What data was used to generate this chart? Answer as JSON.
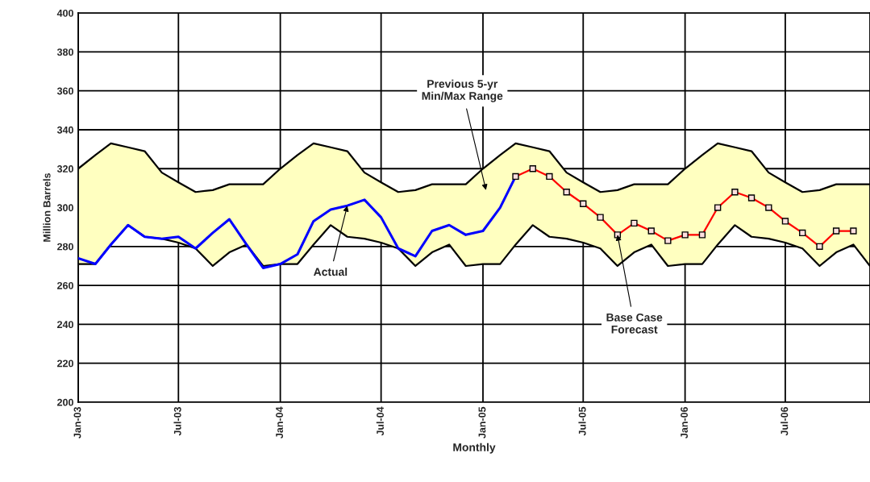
{
  "chart_data": {
    "type": "line",
    "xlabel": "Monthly",
    "ylabel": "Million Barrels",
    "x": [
      "2003-01",
      "2003-02",
      "2003-03",
      "2003-04",
      "2003-05",
      "2003-06",
      "2003-07",
      "2003-08",
      "2003-09",
      "2003-10",
      "2003-11",
      "2003-12",
      "2004-01",
      "2004-02",
      "2004-03",
      "2004-04",
      "2004-05",
      "2004-06",
      "2004-07",
      "2004-08",
      "2004-09",
      "2004-10",
      "2004-11",
      "2004-12",
      "2005-01",
      "2005-02",
      "2005-03",
      "2005-04",
      "2005-05",
      "2005-06",
      "2005-07",
      "2005-08",
      "2005-09",
      "2005-10",
      "2005-11",
      "2005-12",
      "2006-01",
      "2006-02",
      "2006-03",
      "2006-04",
      "2006-05",
      "2006-06",
      "2006-07",
      "2006-08",
      "2006-09",
      "2006-10",
      "2006-11",
      "2006-12"
    ],
    "series": [
      {
        "type": "area",
        "color": "#ffffc0",
        "values": [
          320,
          327,
          333,
          331,
          329,
          318,
          313,
          308,
          309,
          312,
          312,
          312,
          320,
          327,
          333,
          331,
          329,
          318,
          313,
          308,
          309,
          312,
          312,
          312,
          320,
          327,
          333,
          331,
          329,
          318,
          313,
          308,
          309,
          312,
          312,
          312,
          320,
          327,
          333,
          331,
          329,
          318,
          313,
          308,
          309,
          312,
          312,
          312
        ]
      },
      {
        "type": "area",
        "color": "#ffffff",
        "values": [
          271,
          271,
          281,
          291,
          285,
          284,
          282,
          279,
          270,
          277,
          281,
          270,
          271,
          271,
          281,
          291,
          285,
          284,
          282,
          279,
          270,
          277,
          281,
          270,
          271,
          271,
          281,
          291,
          285,
          284,
          282,
          279,
          270,
          277,
          281,
          270,
          271,
          271,
          281,
          291,
          285,
          284,
          282,
          279,
          270,
          277,
          281,
          270
        ]
      },
      {
        "color": "#0000ff",
        "marker": "none",
        "values": [
          274,
          271,
          281,
          291,
          285,
          284,
          285,
          279,
          287,
          294,
          281,
          269,
          271,
          276,
          293,
          299,
          301,
          304,
          295,
          279,
          275,
          288,
          291,
          286,
          288,
          300,
          316,
          null,
          null,
          null,
          null,
          null,
          null,
          null,
          null,
          null,
          null,
          null,
          null,
          null,
          null,
          null,
          null,
          null,
          null,
          null,
          null,
          null
        ]
      },
      {
        "color": "#ff0000",
        "marker": "square",
        "values": [
          null,
          null,
          null,
          null,
          null,
          null,
          null,
          null,
          null,
          null,
          null,
          null,
          null,
          null,
          null,
          null,
          null,
          null,
          null,
          null,
          null,
          null,
          null,
          null,
          null,
          null,
          316,
          320,
          316,
          308,
          302,
          295,
          286,
          292,
          288,
          283,
          286,
          286,
          300,
          308,
          305,
          300,
          293,
          287,
          280,
          288,
          288,
          null
        ]
      }
    ],
    "xlim": [
      "2003-01",
      "2006-12"
    ],
    "xticks": [
      {
        "value": "2003-01",
        "label": "Jan-03"
      },
      {
        "value": "2003-07",
        "label": "Jul-03"
      },
      {
        "value": "2004-01",
        "label": "Jan-04"
      },
      {
        "value": "2004-07",
        "label": "Jul-04"
      },
      {
        "value": "2005-01",
        "label": "Jan-05"
      },
      {
        "value": "2005-07",
        "label": "Jul-05"
      },
      {
        "value": "2006-01",
        "label": "Jan-06"
      },
      {
        "value": "2006-07",
        "label": "Jul-06"
      }
    ],
    "ylim": [
      200,
      400
    ],
    "yticks": [
      200,
      220,
      240,
      260,
      280,
      300,
      320,
      340,
      360,
      380,
      400
    ],
    "grid": true,
    "legend": false,
    "annotations": [
      "Previous 5-yr\nMin/Max Range",
      {
        "text": "Actual",
        "x": "2004-05",
        "y": 301
      },
      {
        "text": "Base Case\nForecast",
        "x": "2005-09",
        "y": 286
      }
    ]
  }
}
